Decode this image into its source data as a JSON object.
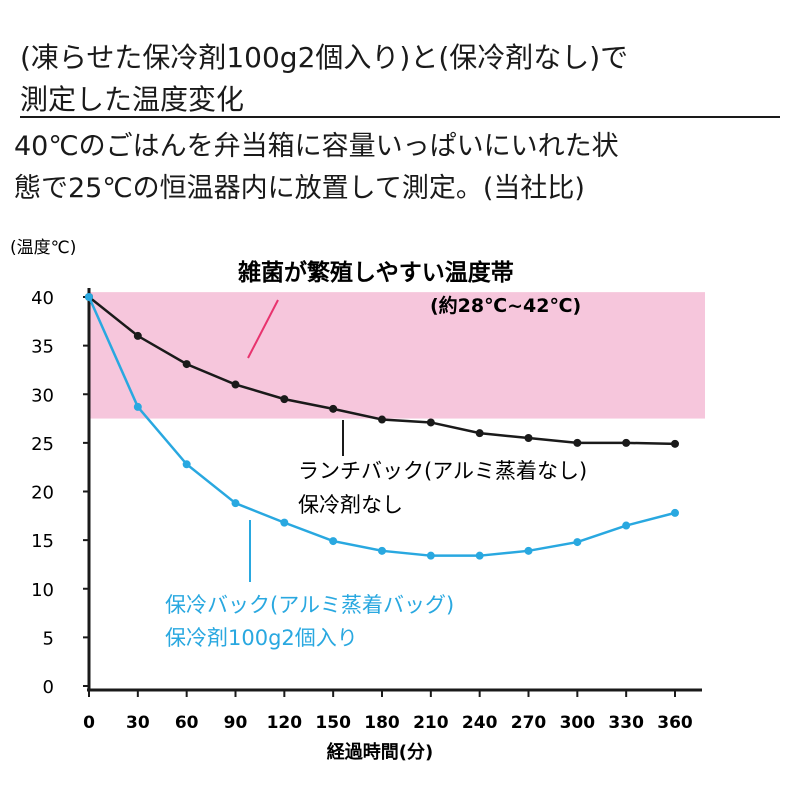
{
  "title_lines": [
    "(凍らせた保冷剤100g2個入り)と(保冷剤なし)で",
    "測定した温度変化"
  ],
  "description_lines": [
    "40℃のごはんを弁当箱に容量いっぱいにいれた状",
    "態で25℃の恒温器内に放置して測定。(当社比)"
  ],
  "chart_data": {
    "type": "line",
    "ylabel": "(温度℃)",
    "xlabel": "経過時間(分)",
    "x": [
      0,
      30,
      60,
      90,
      120,
      150,
      180,
      210,
      240,
      270,
      300,
      330,
      360
    ],
    "xticks": [
      "0",
      "30",
      "60",
      "90",
      "120",
      "150",
      "180",
      "210",
      "240",
      "270",
      "300",
      "330",
      "360"
    ],
    "yticks": [
      "0",
      "5",
      "10",
      "15",
      "20",
      "25",
      "30",
      "35",
      "40"
    ],
    "xlim": [
      0,
      375
    ],
    "ylim": [
      0,
      41
    ],
    "grid": false,
    "series": [
      {
        "name": "ランチバック(アルミ蒸着なし) 保冷剤なし",
        "label_lines": [
          "ランチバック(アルミ蒸着なし)",
          "保冷剤なし"
        ],
        "color": "#1a1a1a",
        "values": [
          40,
          36.0,
          33.1,
          31.0,
          29.5,
          28.5,
          27.4,
          27.1,
          26.0,
          25.5,
          25.0,
          25.0,
          24.9
        ]
      },
      {
        "name": "保冷バック(アルミ蒸着バッグ) 保冷剤100g2個入り",
        "label_lines": [
          "保冷バック(アルミ蒸着バッグ)",
          "保冷剤100g2個入り"
        ],
        "color": "#29a8e0",
        "values": [
          40,
          28.7,
          22.8,
          18.8,
          16.8,
          14.9,
          13.9,
          13.4,
          13.4,
          13.9,
          14.8,
          16.5,
          17.8
        ]
      }
    ],
    "band": {
      "label": "雑菌が繁殖しやすい温度帯",
      "range_label": "(約28℃~42℃)",
      "range": [
        28,
        42
      ],
      "color": "#f6c6dc",
      "pointer_color": "#e8336e"
    }
  }
}
